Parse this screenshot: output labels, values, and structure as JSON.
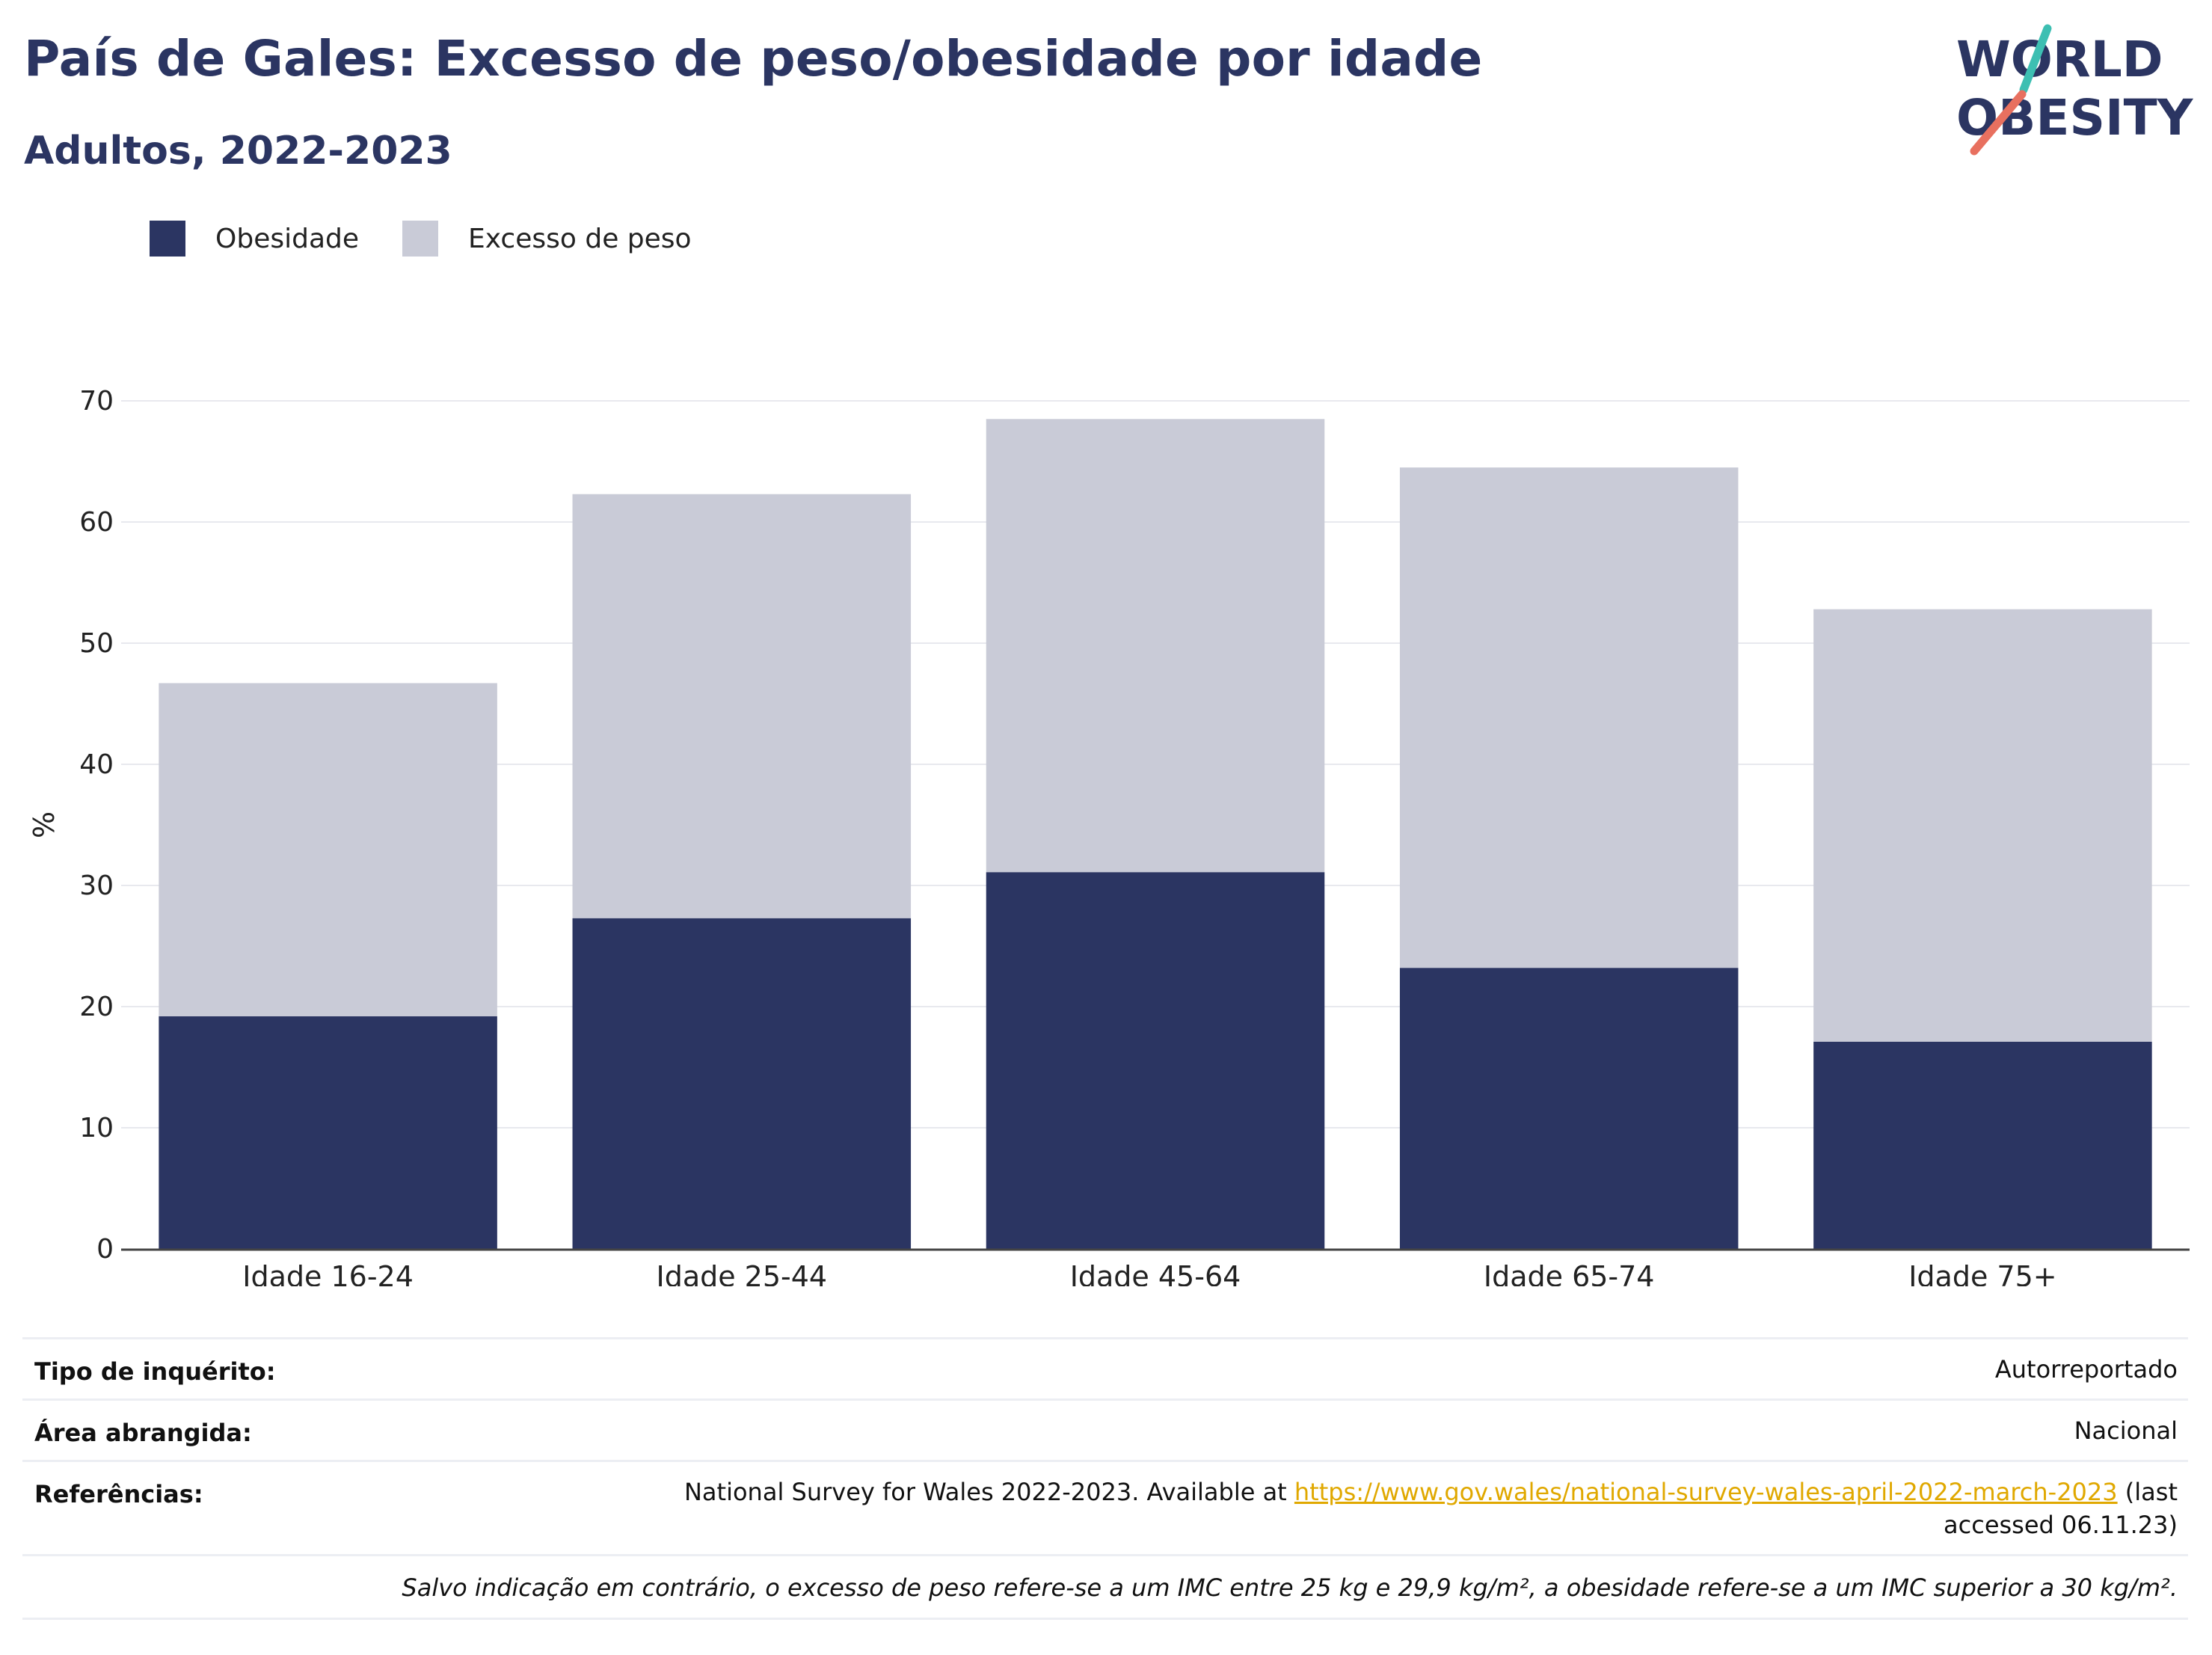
{
  "title": "País de Gales: Excesso de peso/obesidade por idade",
  "subtitle": "Adultos, 2022-2023",
  "logo": {
    "line1": "WORLD",
    "line2": "OBESITY"
  },
  "colors": {
    "obesity": "#2b3562",
    "overweight": "#c9cbd7",
    "title": "#2b3562",
    "accent_teal": "#3dbfb2",
    "accent_red": "#e8705f",
    "link": "#e0a800"
  },
  "legend": [
    {
      "label": "Obesidade",
      "color": "#2b3562"
    },
    {
      "label": "Excesso de peso",
      "color": "#c9cbd7"
    }
  ],
  "chart_data": {
    "type": "bar",
    "stacked": true,
    "categories": [
      "Idade 16-24",
      "Idade 25-44",
      "Idade 45-64",
      "Idade 65-74",
      "Idade 75+"
    ],
    "series": [
      {
        "name": "Obesidade",
        "values": [
          19.2,
          27.3,
          31.1,
          23.2,
          17.1
        ]
      },
      {
        "name": "Excesso de peso",
        "values": [
          27.5,
          35.0,
          37.4,
          41.3,
          35.7
        ]
      }
    ],
    "ylabel": "%",
    "ylim": [
      0,
      70
    ],
    "yticks": [
      0,
      10,
      20,
      30,
      40,
      50,
      60,
      70
    ],
    "grid": true,
    "legend_position": "top-left"
  },
  "info": {
    "survey_type_label": "Tipo de inquérito:",
    "survey_type_value": "Autorreportado",
    "area_label": "Área abrangida:",
    "area_value": "Nacional",
    "references_label": "Referências:",
    "references_prefix": "National Survey for Wales 2022-2023. Available at",
    "references_link": "https://www.gov.wales/national-survey-wales-april-2022-march-2023",
    "references_suffix": "(last",
    "references_line2": "accessed 06.11.23)",
    "note": "Salvo indicação em contrário, o excesso de peso refere-se a um IMC entre 25 kg e 29,9 kg/m², a obesidade refere-se a um IMC superior a 30 kg/m²."
  }
}
